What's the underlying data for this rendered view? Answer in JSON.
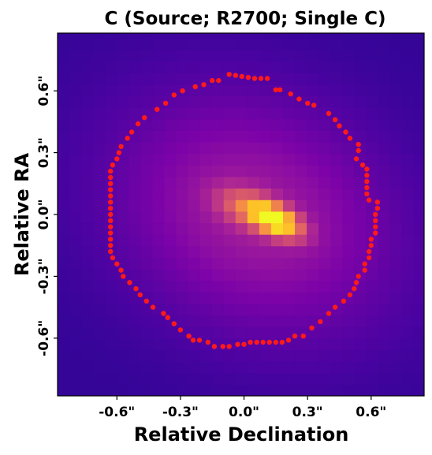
{
  "chart_data": {
    "type": "heatmap",
    "title": "C (Source; R2700; Single C)",
    "xlabel": "Relative Declination",
    "ylabel": "Relative RA",
    "x_ticks": [
      {
        "value": -0.6,
        "label": "-0.6\""
      },
      {
        "value": -0.3,
        "label": "-0.3\""
      },
      {
        "value": 0.0,
        "label": "0.0\""
      },
      {
        "value": 0.3,
        "label": "0.3\""
      },
      {
        "value": 0.6,
        "label": "0.6\""
      }
    ],
    "y_ticks": [
      {
        "value": 0.6,
        "label": "0.6\""
      },
      {
        "value": 0.3,
        "label": "0.3\""
      },
      {
        "value": 0.0,
        "label": "0.0\""
      },
      {
        "value": -0.3,
        "label": "-0.3\""
      },
      {
        "value": -0.6,
        "label": "-0.6\""
      }
    ],
    "xlim": [
      -0.88,
      0.85
    ],
    "ylim": [
      -0.88,
      0.88
    ],
    "colormap": "plasma",
    "grid": false,
    "image_model": {
      "peak": {
        "x": 0.14,
        "y": -0.02
      },
      "core": {
        "sigma_major": 0.09,
        "sigma_minor": 0.045,
        "angle_deg": -27,
        "amplitude": 1.0
      },
      "halo": {
        "sigma_major": 0.42,
        "sigma_minor": 0.33,
        "angle_deg": -30,
        "amplitude": 0.2,
        "center": {
          "x": 0.05,
          "y": 0.0
        }
      },
      "pixel_size": 0.056
    },
    "contour": {
      "color": "#ff1a1a",
      "points": [
        [
          -0.07,
          0.68
        ],
        [
          -0.04,
          0.675
        ],
        [
          -0.01,
          0.67
        ],
        [
          0.02,
          0.665
        ],
        [
          0.05,
          0.66
        ],
        [
          0.08,
          0.66
        ],
        [
          0.11,
          0.66
        ],
        [
          0.15,
          0.605
        ],
        [
          0.17,
          0.605
        ],
        [
          0.22,
          0.585
        ],
        [
          0.26,
          0.56
        ],
        [
          0.3,
          0.54
        ],
        [
          0.33,
          0.53
        ],
        [
          0.4,
          0.49
        ],
        [
          0.43,
          0.46
        ],
        [
          0.45,
          0.43
        ],
        [
          0.48,
          0.4
        ],
        [
          0.5,
          0.37
        ],
        [
          0.54,
          0.34
        ],
        [
          0.54,
          0.31
        ],
        [
          0.53,
          0.27
        ],
        [
          0.56,
          0.24
        ],
        [
          0.58,
          0.22
        ],
        [
          0.58,
          0.19
        ],
        [
          0.58,
          0.16
        ],
        [
          0.58,
          0.13
        ],
        [
          0.58,
          0.1
        ],
        [
          0.59,
          0.07
        ],
        [
          0.63,
          0.06
        ],
        [
          0.63,
          0.03
        ],
        [
          0.62,
          0.0
        ],
        [
          0.62,
          -0.03
        ],
        [
          0.62,
          -0.06
        ],
        [
          0.62,
          -0.09
        ],
        [
          0.6,
          -0.12
        ],
        [
          0.6,
          -0.15
        ],
        [
          0.59,
          -0.18
        ],
        [
          0.59,
          -0.21
        ],
        [
          0.57,
          -0.24
        ],
        [
          0.57,
          -0.27
        ],
        [
          0.54,
          -0.3
        ],
        [
          0.53,
          -0.33
        ],
        [
          0.52,
          -0.36
        ],
        [
          0.5,
          -0.39
        ],
        [
          0.47,
          -0.42
        ],
        [
          0.43,
          -0.45
        ],
        [
          0.4,
          -0.48
        ],
        [
          0.36,
          -0.52
        ],
        [
          0.32,
          -0.55
        ],
        [
          0.28,
          -0.59
        ],
        [
          0.24,
          -0.59
        ],
        [
          0.21,
          -0.61
        ],
        [
          0.18,
          -0.62
        ],
        [
          0.15,
          -0.62
        ],
        [
          0.12,
          -0.62
        ],
        [
          0.09,
          -0.62
        ],
        [
          0.06,
          -0.62
        ],
        [
          0.03,
          -0.62
        ],
        [
          0.0,
          -0.63
        ],
        [
          -0.03,
          -0.63
        ],
        [
          -0.07,
          -0.64
        ],
        [
          -0.1,
          -0.64
        ],
        [
          -0.14,
          -0.64
        ],
        [
          -0.17,
          -0.62
        ],
        [
          -0.21,
          -0.61
        ],
        [
          -0.24,
          -0.61
        ],
        [
          -0.26,
          -0.59
        ],
        [
          -0.3,
          -0.56
        ],
        [
          -0.33,
          -0.53
        ],
        [
          -0.36,
          -0.5
        ],
        [
          -0.38,
          -0.48
        ],
        [
          -0.43,
          -0.45
        ],
        [
          -0.46,
          -0.42
        ],
        [
          -0.49,
          -0.39
        ],
        [
          -0.51,
          -0.36
        ],
        [
          -0.54,
          -0.33
        ],
        [
          -0.57,
          -0.3
        ],
        [
          -0.58,
          -0.27
        ],
        [
          -0.6,
          -0.24
        ],
        [
          -0.62,
          -0.21
        ],
        [
          -0.63,
          -0.18
        ],
        [
          -0.63,
          -0.15
        ],
        [
          -0.63,
          -0.12
        ],
        [
          -0.63,
          -0.09
        ],
        [
          -0.63,
          -0.06
        ],
        [
          -0.63,
          -0.03
        ],
        [
          -0.63,
          0.0
        ],
        [
          -0.63,
          0.03
        ],
        [
          -0.63,
          0.06
        ],
        [
          -0.63,
          0.09
        ],
        [
          -0.63,
          0.12
        ],
        [
          -0.63,
          0.15
        ],
        [
          -0.63,
          0.18
        ],
        [
          -0.63,
          0.21
        ],
        [
          -0.62,
          0.24
        ],
        [
          -0.6,
          0.27
        ],
        [
          -0.59,
          0.3
        ],
        [
          -0.58,
          0.33
        ],
        [
          -0.55,
          0.37
        ],
        [
          -0.53,
          0.4
        ],
        [
          -0.5,
          0.44
        ],
        [
          -0.47,
          0.47
        ],
        [
          -0.41,
          0.51
        ],
        [
          -0.37,
          0.54
        ],
        [
          -0.33,
          0.58
        ],
        [
          -0.29,
          0.6
        ],
        [
          -0.23,
          0.62
        ],
        [
          -0.19,
          0.63
        ],
        [
          -0.15,
          0.65
        ],
        [
          -0.12,
          0.65
        ]
      ]
    }
  }
}
